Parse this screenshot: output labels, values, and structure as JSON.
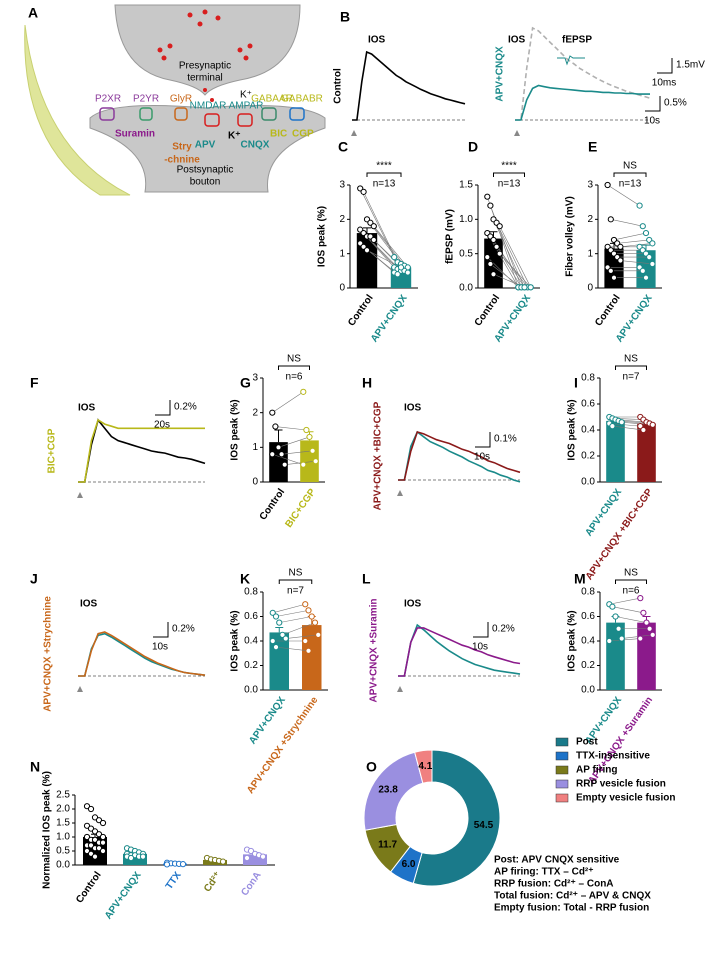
{
  "diagram": {
    "panel": "A",
    "presynaptic": [
      "Presynaptic",
      "terminal"
    ],
    "postsynaptic": [
      "Postsynaptic",
      "bouton"
    ],
    "receptors": [
      "P2XR",
      "P2YR",
      "GlyR",
      "NMDAR",
      "AMPAR",
      "GABAAR",
      "GABABR"
    ],
    "ions": [
      "K⁺",
      "K⁺"
    ],
    "blockers": [
      "Suramin",
      "Stry",
      "-chnine",
      "APV",
      "CNQX",
      "BIC",
      "CGP"
    ]
  },
  "chart_data": [
    {
      "type": "line",
      "panel": "B",
      "title": "IOS",
      "ylabel": "Control",
      "series": [
        {
          "color": "#000000",
          "values": [
            0,
            0,
            0.9,
            1.6,
            1.55,
            1.45,
            1.35,
            1.25,
            1.15,
            1.05,
            0.98,
            0.9,
            0.84,
            0.78,
            0.72,
            0.67,
            0.62,
            0.58,
            0.54,
            0.5,
            0.47,
            0.44,
            0.41,
            0.38
          ]
        }
      ]
    },
    {
      "type": "line",
      "title": "IOS",
      "ylabel": "APV+CNQX",
      "inset_title": "fEPSP",
      "inset_scale": [
        "1.5mV",
        "10ms"
      ],
      "scale_bar": [
        "0.5%",
        "10s"
      ],
      "series": [
        {
          "color": "#1a8a8a",
          "values": [
            0,
            0,
            0.35,
            0.55,
            0.6,
            0.58,
            0.56,
            0.55,
            0.54,
            0.53,
            0.52,
            0.51,
            0.5,
            0.5,
            0.49,
            0.48,
            0.48,
            0.47,
            0.47,
            0.46,
            0.46,
            0.45,
            0.45,
            0.45
          ]
        },
        {
          "color": "#b0b0b0",
          "dashed": true,
          "values": [
            0,
            0,
            0.9,
            1.6,
            1.55,
            1.45,
            1.35,
            1.25,
            1.15,
            1.05,
            0.98,
            0.9,
            0.84,
            0.78,
            0.72,
            0.67,
            0.62,
            0.58,
            0.54,
            0.5,
            0.47,
            0.44,
            0.41,
            0.38
          ]
        }
      ]
    },
    {
      "type": "bar",
      "panel": "C",
      "ylabel": "IOS peak (%)",
      "categories": [
        "Control",
        "APV+CNQX"
      ],
      "colors": [
        "#000000",
        "#1a8a8a"
      ],
      "values": [
        1.6,
        0.6
      ],
      "errors": [
        0.15,
        0.05
      ],
      "paired": true,
      "significance": "****",
      "n_label": "n=13",
      "points": [
        [
          2.9,
          2.8,
          2.0,
          1.9,
          1.8,
          1.7,
          1.6,
          1.5,
          1.5,
          1.4,
          1.3,
          1.2,
          1.1
        ],
        [
          0.9,
          0.75,
          0.7,
          0.65,
          0.6,
          0.6,
          0.55,
          0.5,
          0.5,
          0.45,
          0.45,
          0.4,
          0.6
        ]
      ],
      "ylim": [
        0,
        3
      ],
      "yticks": [
        0,
        1,
        2,
        3
      ]
    },
    {
      "type": "bar",
      "panel": "D",
      "ylabel": "fEPSP (mV)",
      "categories": [
        "Control",
        "APV+CNQX"
      ],
      "colors": [
        "#000000",
        "#1a8a8a"
      ],
      "values": [
        0.72,
        0.01
      ],
      "errors": [
        0.1,
        0.005
      ],
      "paired": true,
      "significance": "****",
      "n_label": "n=13",
      "points": [
        [
          1.33,
          1.2,
          1.0,
          0.95,
          0.9,
          0.8,
          0.75,
          0.7,
          0.6,
          0.5,
          0.45,
          0.35,
          0.2
        ],
        [
          0.01,
          0.01,
          0.01,
          0.01,
          0.01,
          0.01,
          0.01,
          0.01,
          0.01,
          0.01,
          0.01,
          0.01,
          0.01
        ]
      ],
      "ylim": [
        0,
        1.5
      ],
      "yticks": [
        {
          "value": 0,
          "label": "0.0"
        },
        0.5,
        {
          "value": 1,
          "label": "1.0"
        },
        1.5
      ]
    },
    {
      "type": "bar",
      "panel": "E",
      "ylabel": "Fiber volley (mV)",
      "categories": [
        "Control",
        "APV+CNQX"
      ],
      "colors": [
        "#000000",
        "#1a8a8a"
      ],
      "values": [
        1.15,
        1.1
      ],
      "errors": [
        0.15,
        0.15
      ],
      "paired": true,
      "significance": "NS",
      "n_label": "n=13",
      "points": [
        [
          3.0,
          2.0,
          1.4,
          1.3,
          1.2,
          1.2,
          1.1,
          1.0,
          0.9,
          0.8,
          0.6,
          0.5,
          0.3
        ],
        [
          2.4,
          1.8,
          1.6,
          1.4,
          1.3,
          1.2,
          1.1,
          1.0,
          0.9,
          0.7,
          0.6,
          0.5,
          0.3
        ]
      ],
      "ylim": [
        0,
        3
      ],
      "yticks": [
        0,
        1,
        2,
        3
      ]
    },
    {
      "type": "line",
      "panel": "F",
      "title": "IOS",
      "ylabel": "BIC+CGP",
      "scale_bar": [
        "0.2%",
        "20s"
      ],
      "series": [
        {
          "color": "#b8b81a",
          "values": [
            0,
            0,
            1.0,
            1.5,
            1.4,
            1.35,
            1.3,
            1.3,
            1.3,
            1.3,
            1.3,
            1.3,
            1.3,
            1.3,
            1.3,
            1.3,
            1.3,
            1.3,
            1.3,
            1.3
          ]
        },
        {
          "color": "#000000",
          "values": [
            0,
            0,
            0.9,
            1.5,
            1.3,
            1.1,
            1.0,
            0.95,
            0.9,
            0.85,
            0.8,
            0.75,
            0.72,
            0.7,
            0.65,
            0.6,
            0.58,
            0.55,
            0.5,
            0.45
          ]
        }
      ]
    },
    {
      "type": "bar",
      "panel": "G",
      "ylabel": "IOS peak (%)",
      "categories": [
        "Control",
        "BIC+CGP"
      ],
      "colors": [
        "#000000",
        "#b8b81a"
      ],
      "values": [
        1.15,
        1.2
      ],
      "errors": [
        0.35,
        0.25
      ],
      "paired": true,
      "significance": "NS",
      "n_label": "n=6",
      "points": [
        [
          2.0,
          1.6,
          1.0,
          0.8,
          0.5,
          0.8
        ],
        [
          2.6,
          1.5,
          1.3,
          0.9,
          0.6,
          0.5
        ]
      ],
      "ylim": [
        0,
        3
      ],
      "yticks": [
        0,
        1,
        2,
        3
      ]
    },
    {
      "type": "line",
      "panel": "H",
      "title": "IOS",
      "ylabel": "APV+CNQX +BIC+CGP",
      "scale_bar": [
        "0.1%",
        "10s"
      ],
      "series": [
        {
          "color": "#8b1a1a",
          "values": [
            0,
            0,
            0.3,
            0.5,
            0.48,
            0.45,
            0.42,
            0.4,
            0.38,
            0.35,
            0.32,
            0.3,
            0.27,
            0.24,
            0.2,
            0.18,
            0.15,
            0.12,
            0.1,
            0.08
          ]
        },
        {
          "color": "#1a8a8a",
          "values": [
            0,
            0,
            0.35,
            0.5,
            0.45,
            0.4,
            0.37,
            0.34,
            0.3,
            0.27,
            0.24,
            0.2,
            0.17,
            0.14,
            0.1,
            0.08,
            0.05,
            0.03,
            0.0,
            -0.02
          ]
        }
      ]
    },
    {
      "type": "bar",
      "panel": "I",
      "ylabel": "IOS peak (%)",
      "categories": [
        "APV+CNQX",
        "APV+CNQX +BIC+CGP"
      ],
      "colors": [
        "#1a8a8a",
        "#8b1a1a"
      ],
      "values": [
        0.47,
        0.45
      ],
      "errors": [
        0.02,
        0.02
      ],
      "paired": true,
      "significance": "NS",
      "n_label": "n=7",
      "points": [
        [
          0.5,
          0.49,
          0.48,
          0.47,
          0.46,
          0.45,
          0.43
        ],
        [
          0.5,
          0.48,
          0.46,
          0.45,
          0.44,
          0.43,
          0.4
        ]
      ],
      "ylim": [
        0,
        0.8
      ],
      "yticks": [
        {
          "value": 0,
          "label": "0.0"
        },
        0.2,
        0.4,
        0.6,
        0.8
      ]
    },
    {
      "type": "line",
      "panel": "J",
      "title": "IOS",
      "ylabel": "APV+CNQX +Strychnine",
      "scale_bar": [
        "0.2%",
        "10s"
      ],
      "series": [
        {
          "color": "#c8671a",
          "values": [
            0,
            0,
            0.3,
            0.5,
            0.52,
            0.48,
            0.43,
            0.38,
            0.33,
            0.28,
            0.23,
            0.19,
            0.15,
            0.12,
            0.09,
            0.06,
            0.04,
            0.03,
            0.02,
            0.01
          ]
        },
        {
          "color": "#1a8a8a",
          "values": [
            0,
            0,
            0.32,
            0.48,
            0.5,
            0.46,
            0.41,
            0.36,
            0.31,
            0.26,
            0.21,
            0.17,
            0.14,
            0.11,
            0.08,
            0.06,
            0.04,
            0.03,
            0.02,
            0.01
          ]
        }
      ]
    },
    {
      "type": "bar",
      "panel": "K",
      "ylabel": "IOS peak (%)",
      "categories": [
        "APV+CNQX",
        "APV+CNQX +Strychnine"
      ],
      "colors": [
        "#1a8a8a",
        "#c8671a"
      ],
      "values": [
        0.47,
        0.53
      ],
      "errors": [
        0.04,
        0.07
      ],
      "paired": true,
      "significance": "NS",
      "n_label": "n=7",
      "points": [
        [
          0.63,
          0.6,
          0.55,
          0.45,
          0.42,
          0.4,
          0.35
        ],
        [
          0.7,
          0.65,
          0.6,
          0.55,
          0.45,
          0.4,
          0.32
        ]
      ],
      "ylim": [
        0,
        0.8
      ],
      "yticks": [
        {
          "value": 0,
          "label": "0.0"
        },
        0.2,
        0.4,
        0.6,
        0.8
      ]
    },
    {
      "type": "line",
      "panel": "L",
      "title": "IOS",
      "ylabel": "APV+CNQX +Suramin",
      "scale_bar": [
        "0.2%",
        "10s"
      ],
      "series": [
        {
          "color": "#8b1a8b",
          "values": [
            0,
            0,
            0.35,
            0.5,
            0.5,
            0.47,
            0.44,
            0.41,
            0.38,
            0.35,
            0.32,
            0.3,
            0.27,
            0.25,
            0.22,
            0.2,
            0.18,
            0.16,
            0.14,
            0.13
          ]
        },
        {
          "color": "#1a8a8a",
          "values": [
            0,
            0,
            0.35,
            0.53,
            0.48,
            0.42,
            0.36,
            0.31,
            0.26,
            0.22,
            0.18,
            0.15,
            0.12,
            0.1,
            0.08,
            0.06,
            0.05,
            0.04,
            0.03,
            0.02
          ]
        }
      ]
    },
    {
      "type": "bar",
      "panel": "M",
      "ylabel": "IOS peak (%)",
      "categories": [
        "APV+CNQX",
        "APV+CNQX +Suramin"
      ],
      "colors": [
        "#1a8a8a",
        "#8b1a8b"
      ],
      "values": [
        0.55,
        0.55
      ],
      "errors": [
        0.05,
        0.05
      ],
      "paired": true,
      "significance": "NS",
      "n_label": "n=6",
      "points": [
        [
          0.7,
          0.68,
          0.6,
          0.5,
          0.42,
          0.4
        ],
        [
          0.75,
          0.63,
          0.55,
          0.5,
          0.45,
          0.42
        ]
      ],
      "ylim": [
        0,
        0.8
      ],
      "yticks": [
        {
          "value": 0,
          "label": "0.0"
        },
        0.2,
        0.4,
        0.6,
        0.8
      ]
    },
    {
      "type": "bar",
      "panel": "N",
      "ylabel": "Normalized IOS peak (%)",
      "categories": [
        "Control",
        "APV+CNQX",
        "TTX",
        "Cd²⁺",
        "ConA"
      ],
      "colors": [
        "#000000",
        "#1a8a8a",
        "#1e73c8",
        "#7a7a1a",
        "#9a8fe0"
      ],
      "values": [
        1.0,
        0.4,
        0.05,
        0.18,
        0.38
      ],
      "errors": [
        0.1,
        0.03,
        0.01,
        0.02,
        0.06
      ],
      "paired": false,
      "points": [
        [
          2.1,
          2.0,
          1.7,
          1.6,
          1.5,
          1.4,
          1.3,
          1.2,
          1.1,
          1.0,
          1.0,
          0.9,
          0.9,
          0.8,
          0.8,
          0.7,
          0.7,
          0.6,
          0.6,
          0.5,
          0.5,
          0.4,
          0.3
        ],
        [
          0.6,
          0.55,
          0.5,
          0.45,
          0.4,
          0.4,
          0.35,
          0.35,
          0.3,
          0.3,
          0.3,
          0.25
        ],
        [
          0.08,
          0.06,
          0.05,
          0.04,
          0.03,
          0.02
        ],
        [
          0.25,
          0.2,
          0.18,
          0.15,
          0.12
        ],
        [
          0.55,
          0.5,
          0.4,
          0.35,
          0.3,
          0.25
        ]
      ],
      "ylim": [
        0,
        2.5
      ],
      "yticks": [
        {
          "value": 0,
          "label": "0.0"
        },
        0.5,
        {
          "value": 1,
          "label": "1.0"
        },
        1.5,
        {
          "value": 2,
          "label": "2.0"
        },
        2.5
      ]
    },
    {
      "type": "pie",
      "panel": "O",
      "donut": true,
      "legend": "right",
      "categories": [
        "Post",
        "TTX-insensitive",
        "AP firing",
        "RRP vesicle fusion",
        "Empty vesicle fusion"
      ],
      "values": [
        54.5,
        6.0,
        11.7,
        23.8,
        4.1
      ],
      "value_labels": [
        "54.5",
        "6.0",
        "11.7",
        "23.8",
        "4.1"
      ],
      "colors": [
        "#1a7a8a",
        "#1e73c8",
        "#7a7a1a",
        "#9a8fe0",
        "#f08080"
      ],
      "notes": [
        "Post: APV  CNQX sensitive",
        "AP firing: TTX – Cd²⁺",
        "RRP fusion: Cd²⁺ – ConA",
        "Total fusion: Cd²⁺ – APV & CNQX",
        "Empty fusion: Total - RRP fusion"
      ]
    }
  ]
}
